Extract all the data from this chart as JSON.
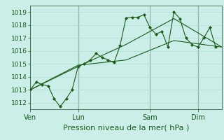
{
  "bg_color": "#cceee8",
  "grid_color": "#aaddcc",
  "line_color": "#1a5c1a",
  "marker_color": "#1a5c1a",
  "xlabel": "Pression niveau de la mer( hPa )",
  "xlabel_fontsize": 8,
  "ylim": [
    1011.5,
    1019.5
  ],
  "yticks": [
    1012,
    1013,
    1014,
    1015,
    1016,
    1017,
    1018,
    1019
  ],
  "ytick_fontsize": 6.5,
  "xtick_labels": [
    "Ven",
    "Lun",
    "Sam",
    "Dim"
  ],
  "xtick_positions": [
    0,
    48,
    120,
    168
  ],
  "xtick_fontsize": 7,
  "vline_positions": [
    0,
    48,
    120,
    168
  ],
  "vline_color": "#446644",
  "total_hours": 192,
  "series_main": {
    "x": [
      0,
      6,
      12,
      18,
      24,
      30,
      36,
      42,
      48,
      54,
      60,
      66,
      72,
      78,
      84,
      90,
      96,
      102,
      108,
      114,
      120,
      126,
      132,
      138,
      144,
      150,
      156,
      162,
      168,
      174,
      180,
      186
    ],
    "y": [
      1013.0,
      1013.6,
      1013.4,
      1013.3,
      1012.3,
      1011.7,
      1012.3,
      1013.0,
      1014.8,
      1015.0,
      1015.3,
      1015.8,
      1015.5,
      1015.3,
      1015.1,
      1016.4,
      1018.55,
      1018.6,
      1018.6,
      1018.8,
      1017.8,
      1017.3,
      1017.5,
      1016.3,
      1019.0,
      1018.5,
      1017.0,
      1016.5,
      1016.3,
      1017.0,
      1017.8,
      1016.3
    ]
  },
  "series_smooth1": {
    "x": [
      0,
      48,
      96,
      144,
      192
    ],
    "y": [
      1013.0,
      1014.8,
      1016.5,
      1018.5,
      1016.3
    ]
  },
  "series_smooth2": {
    "x": [
      0,
      48,
      96,
      144,
      192
    ],
    "y": [
      1013.0,
      1014.9,
      1015.3,
      1016.8,
      1016.3
    ]
  }
}
